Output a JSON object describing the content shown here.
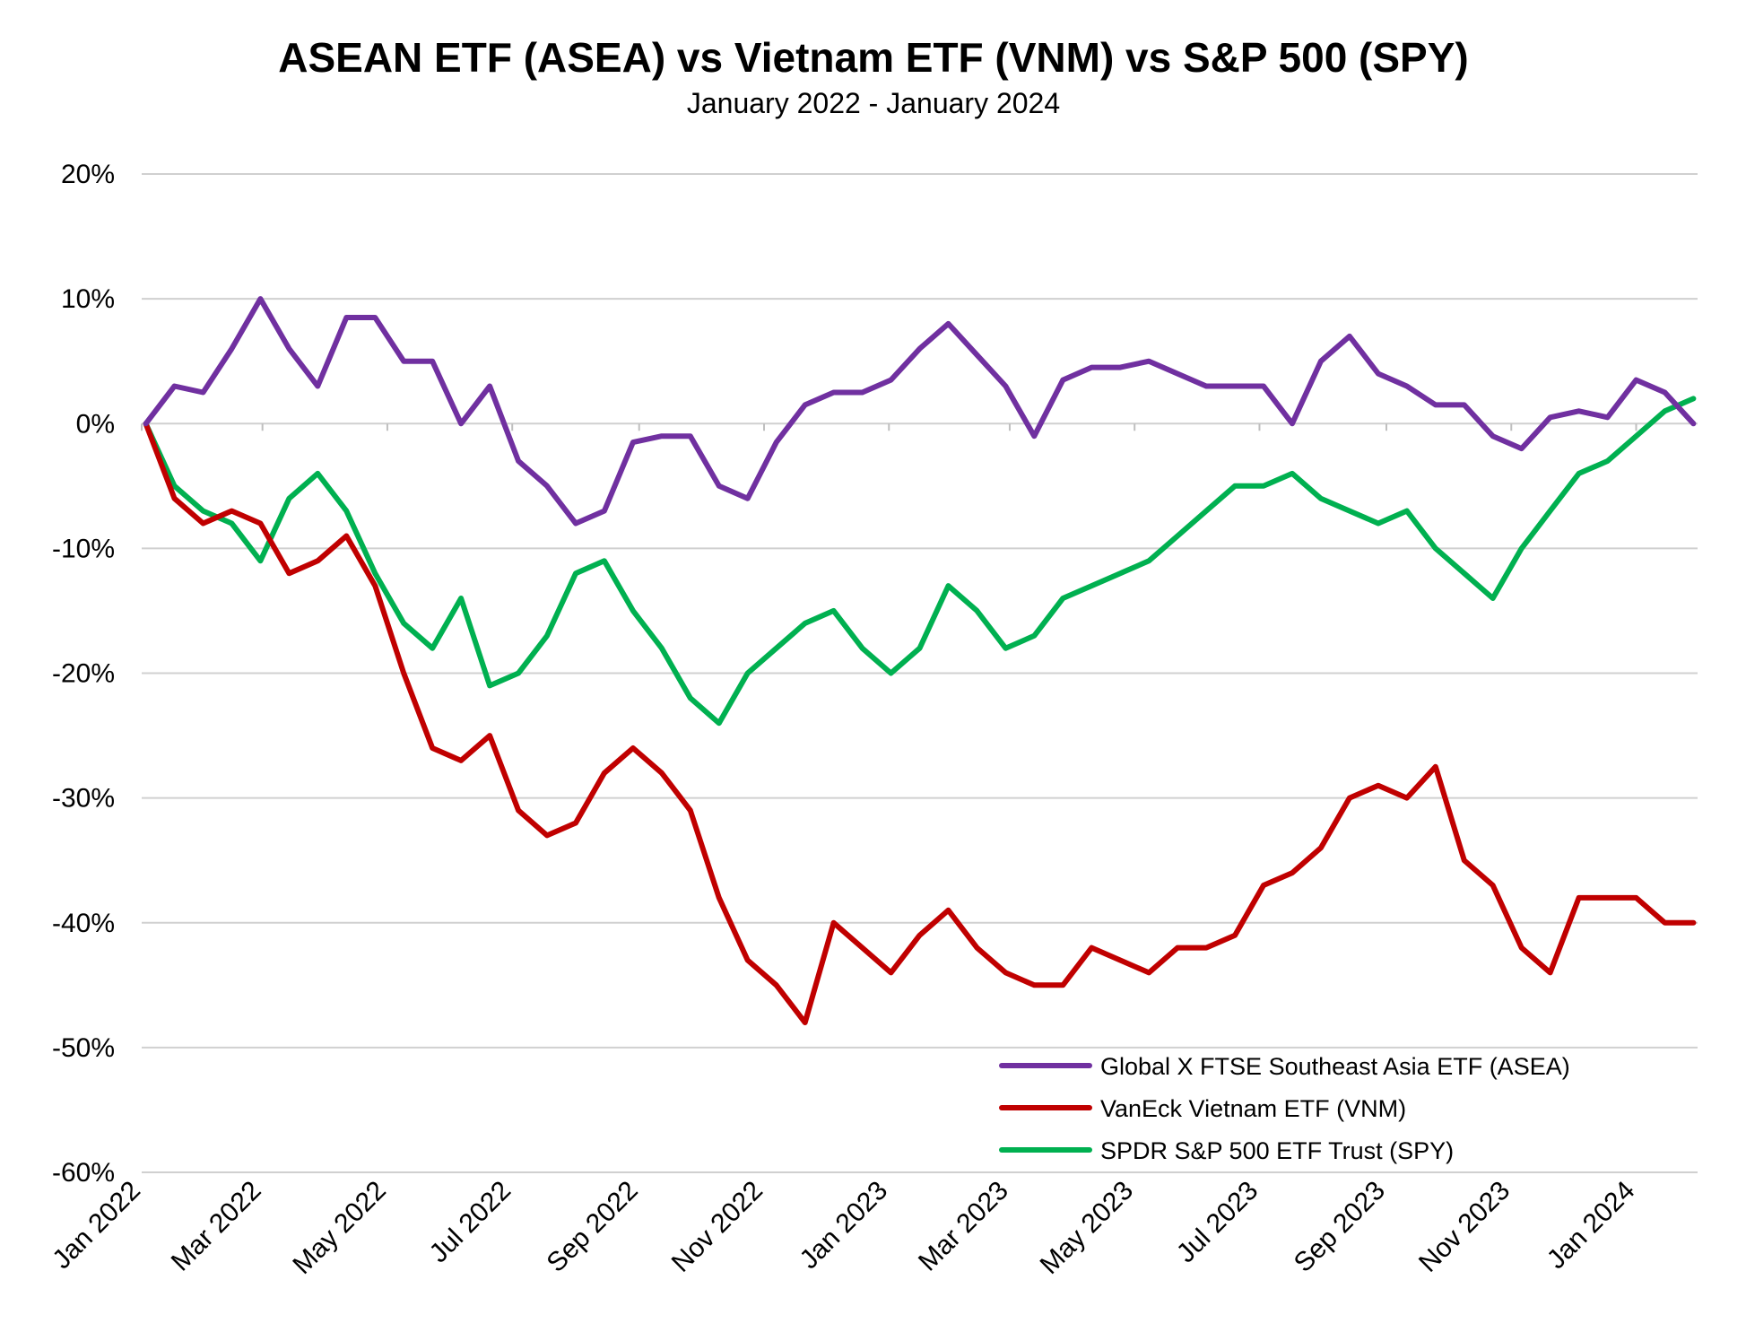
{
  "chart_data": {
    "type": "line",
    "title": "ASEAN ETF (ASEA) vs Vietnam ETF (VNM) vs S&P 500 (SPY)",
    "subtitle": "January 2022 - January 2024",
    "xlabel": "",
    "ylabel": "",
    "ylim": [
      -60,
      20
    ],
    "y_ticks": [
      20,
      10,
      0,
      -10,
      -20,
      -30,
      -40,
      -50,
      -60
    ],
    "y_tick_labels": [
      "20%",
      "10%",
      "0%",
      "-10%",
      "-20%",
      "-30%",
      "-40%",
      "-50%",
      "-60%"
    ],
    "x_range": [
      "2022-01-01",
      "2024-01-31"
    ],
    "x_ticks": [
      "2022-01-01",
      "2022-03-01",
      "2022-05-01",
      "2022-07-01",
      "2022-09-01",
      "2022-11-01",
      "2023-01-01",
      "2023-03-01",
      "2023-05-01",
      "2023-07-01",
      "2023-09-01",
      "2023-11-01",
      "2024-01-01"
    ],
    "x_tick_labels": [
      "Jan 2022",
      "Mar 2022",
      "May 2022",
      "Jul 2022",
      "Sep 2022",
      "Nov 2022",
      "Jan 2023",
      "Mar 2023",
      "May 2023",
      "Jul 2023",
      "Sep 2023",
      "Nov 2023",
      "Jan 2024"
    ],
    "grid": "horizontal",
    "legend_position": "bottom-right",
    "x": [
      "2022-01-03",
      "2022-01-17",
      "2022-01-31",
      "2022-02-14",
      "2022-02-28",
      "2022-03-14",
      "2022-03-28",
      "2022-04-11",
      "2022-04-25",
      "2022-05-09",
      "2022-05-23",
      "2022-06-06",
      "2022-06-20",
      "2022-07-04",
      "2022-07-18",
      "2022-08-01",
      "2022-08-15",
      "2022-08-29",
      "2022-09-12",
      "2022-09-26",
      "2022-10-10",
      "2022-10-24",
      "2022-11-07",
      "2022-11-21",
      "2022-12-05",
      "2022-12-19",
      "2023-01-02",
      "2023-01-16",
      "2023-01-30",
      "2023-02-13",
      "2023-02-27",
      "2023-03-13",
      "2023-03-27",
      "2023-04-10",
      "2023-04-24",
      "2023-05-08",
      "2023-05-22",
      "2023-06-05",
      "2023-06-19",
      "2023-07-03",
      "2023-07-17",
      "2023-07-31",
      "2023-08-14",
      "2023-08-28",
      "2023-09-11",
      "2023-09-25",
      "2023-10-09",
      "2023-10-23",
      "2023-11-06",
      "2023-11-20",
      "2023-12-04",
      "2023-12-18",
      "2024-01-01",
      "2024-01-15",
      "2024-01-29"
    ],
    "series": [
      {
        "name": "Global X FTSE Southeast Asia ETF (ASEA)",
        "color": "#7030a0",
        "values": [
          0,
          3,
          2.5,
          6,
          10,
          6,
          3,
          8.5,
          8.5,
          5,
          5,
          0,
          3,
          -3,
          -5,
          -8,
          -7,
          -1.5,
          -1,
          -1,
          -5,
          -6,
          -1.5,
          1.5,
          2.5,
          2.5,
          3.5,
          6,
          8,
          5.5,
          3,
          -1,
          3.5,
          4.5,
          4.5,
          5,
          4,
          3,
          3,
          3,
          0,
          5,
          7,
          4,
          3,
          1.5,
          1.5,
          -1,
          -2,
          0.5,
          1,
          0.5,
          3.5,
          2.5,
          0
        ]
      },
      {
        "name": "VanEck Vietnam ETF (VNM)",
        "color": "#c00000",
        "values": [
          0,
          -6,
          -8,
          -7,
          -8,
          -12,
          -11,
          -9,
          -13,
          -20,
          -26,
          -27,
          -25,
          -31,
          -33,
          -32,
          -28,
          -26,
          -28,
          -31,
          -38,
          -43,
          -45,
          -48,
          -40,
          -42,
          -44,
          -41,
          -39,
          -42,
          -44,
          -45,
          -45,
          -42,
          -43,
          -44,
          -42,
          -42,
          -41,
          -37,
          -36,
          -34,
          -30,
          -29,
          -30,
          -27.5,
          -35,
          -37,
          -42,
          -44,
          -38,
          -38,
          -38,
          -40,
          -40
        ]
      },
      {
        "name": "SPDR S&P 500 ETF Trust (SPY)",
        "color": "#00b050",
        "values": [
          0,
          -5,
          -7,
          -8,
          -11,
          -6,
          -4,
          -7,
          -12,
          -16,
          -18,
          -14,
          -21,
          -20,
          -17,
          -12,
          -11,
          -15,
          -18,
          -22,
          -24,
          -20,
          -18,
          -16,
          -15,
          -18,
          -20,
          -18,
          -13,
          -15,
          -18,
          -17,
          -14,
          -13,
          -12,
          -11,
          -9,
          -7,
          -5,
          -5,
          -4,
          -6,
          -7,
          -8,
          -7,
          -10,
          -12,
          -14,
          -10,
          -7,
          -4,
          -3,
          -1,
          1,
          2
        ]
      }
    ]
  }
}
